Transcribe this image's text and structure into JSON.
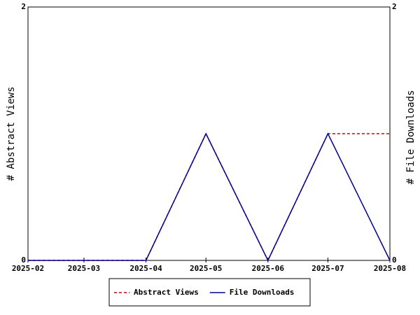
{
  "chart_data": {
    "type": "line",
    "x": [
      "2025-02",
      "2025-03",
      "2025-04",
      "2025-05",
      "2025-06",
      "2025-07",
      "2025-08"
    ],
    "y_label": "# Abstract Views",
    "y2_label": "# File Downloads",
    "ylim": [
      0,
      2
    ],
    "yticks": [
      0,
      2
    ],
    "y2lim": [
      0,
      2
    ],
    "y2ticks": [
      0,
      2
    ],
    "series": [
      {
        "name": "Abstract Views",
        "color": "#cc0000",
        "dash": true,
        "values": [
          0,
          0,
          0,
          1,
          0,
          1,
          1
        ]
      },
      {
        "name": "File Downloads",
        "color": "#000099",
        "dash": false,
        "axis": "y2",
        "values": [
          0,
          0,
          0,
          1,
          0,
          1,
          0
        ]
      }
    ]
  }
}
